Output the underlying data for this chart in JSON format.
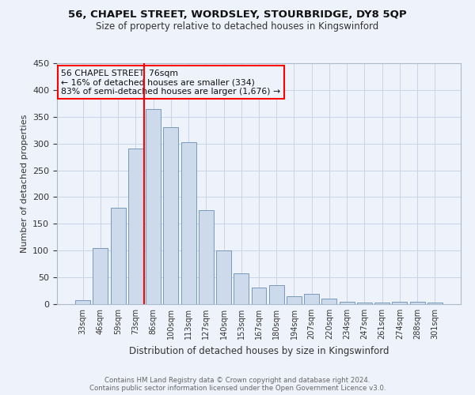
{
  "title1": "56, CHAPEL STREET, WORDSLEY, STOURBRIDGE, DY8 5QP",
  "title2": "Size of property relative to detached houses in Kingswinford",
  "xlabel": "Distribution of detached houses by size in Kingswinford",
  "ylabel": "Number of detached properties",
  "footer1": "Contains HM Land Registry data © Crown copyright and database right 2024.",
  "footer2": "Contains public sector information licensed under the Open Government Licence v3.0.",
  "bar_labels": [
    "33sqm",
    "46sqm",
    "59sqm",
    "73sqm",
    "86sqm",
    "100sqm",
    "113sqm",
    "127sqm",
    "140sqm",
    "153sqm",
    "167sqm",
    "180sqm",
    "194sqm",
    "207sqm",
    "220sqm",
    "234sqm",
    "247sqm",
    "261sqm",
    "274sqm",
    "288sqm",
    "301sqm"
  ],
  "bar_values": [
    8,
    105,
    180,
    290,
    365,
    330,
    303,
    175,
    100,
    58,
    31,
    35,
    15,
    19,
    10,
    5,
    3,
    3,
    5,
    5,
    3
  ],
  "bar_color": "#ccdaeb",
  "bar_edge_color": "#7799bb",
  "grid_color": "#c8d4e4",
  "background_color": "#eef2fa",
  "red_line_x": 3.5,
  "annotation_title": "56 CHAPEL STREET: 76sqm",
  "annotation_line1": "← 16% of detached houses are smaller (334)",
  "annotation_line2": "83% of semi-detached houses are larger (1,676) →",
  "ylim": [
    0,
    450
  ],
  "yticks": [
    0,
    50,
    100,
    150,
    200,
    250,
    300,
    350,
    400,
    450
  ]
}
